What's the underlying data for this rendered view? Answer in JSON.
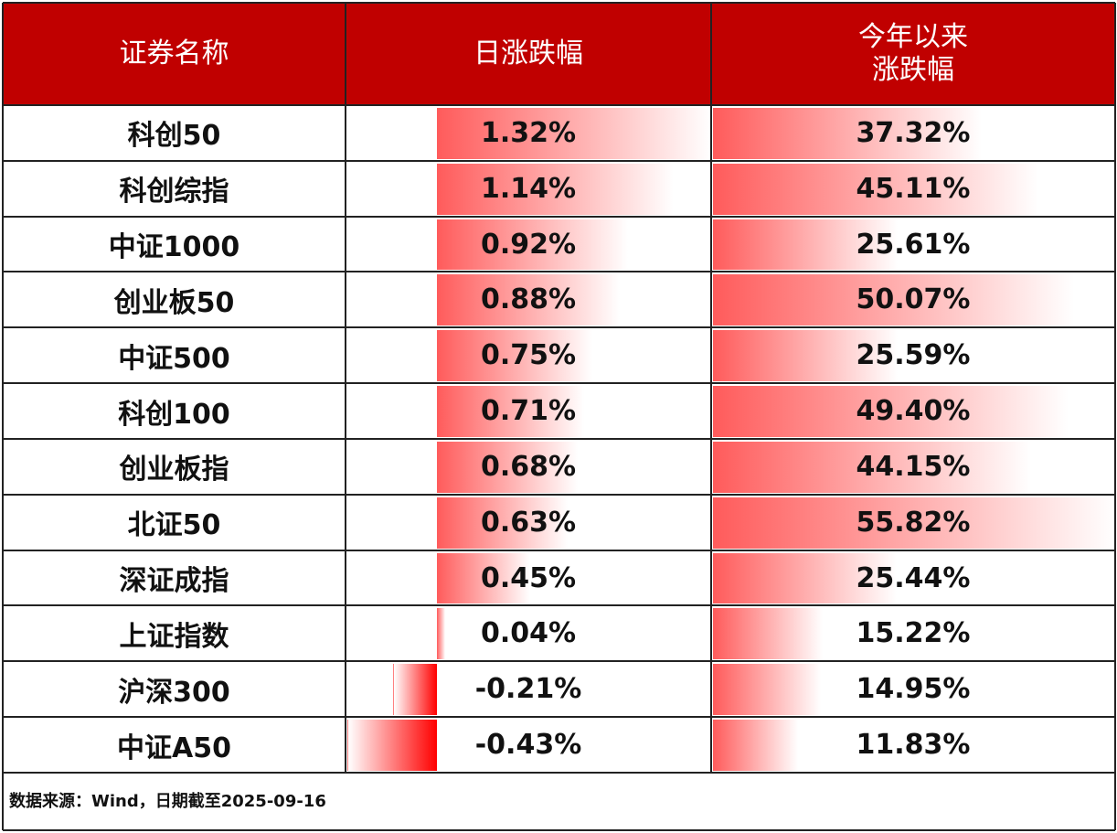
{
  "table": {
    "header": [
      "证券名称",
      "日涨跌幅",
      "今年以来\n涨跌幅"
    ],
    "rows": [
      [
        "科创50",
        {
          "value": 1.32,
          "label": "1.32%"
        },
        {
          "value": 37.32,
          "label": "37.32%"
        }
      ],
      [
        "科创综指",
        {
          "value": 1.14,
          "label": "1.14%"
        },
        {
          "value": 45.11,
          "label": "45.11%"
        }
      ],
      [
        "中证1000",
        {
          "value": 0.92,
          "label": "0.92%"
        },
        {
          "value": 25.61,
          "label": "25.61%"
        }
      ],
      [
        "创业板50",
        {
          "value": 0.88,
          "label": "0.88%"
        },
        {
          "value": 50.07,
          "label": "50.07%"
        }
      ],
      [
        "中证500",
        {
          "value": 0.75,
          "label": "0.75%"
        },
        {
          "value": 25.59,
          "label": "25.59%"
        }
      ],
      [
        "科创100",
        {
          "value": 0.71,
          "label": "0.71%"
        },
        {
          "value": 49.4,
          "label": "49.40%"
        }
      ],
      [
        "创业板指",
        {
          "value": 0.68,
          "label": "0.68%"
        },
        {
          "value": 44.15,
          "label": "44.15%"
        }
      ],
      [
        "北证50",
        {
          "value": 0.63,
          "label": "0.63%"
        },
        {
          "value": 55.82,
          "label": "55.82%"
        }
      ],
      [
        "深证成指",
        {
          "value": 0.45,
          "label": "0.45%"
        },
        {
          "value": 25.44,
          "label": "25.44%"
        }
      ],
      [
        "上证指数",
        {
          "value": 0.04,
          "label": "0.04%"
        },
        {
          "value": 15.22,
          "label": "15.22%"
        }
      ],
      [
        "沪深300",
        {
          "value": -0.21,
          "label": "-0.21%"
        },
        {
          "value": 14.95,
          "label": "14.95%"
        }
      ],
      [
        "中证A50",
        {
          "value": -0.43,
          "label": "-0.43%"
        },
        {
          "value": 11.83,
          "label": "11.83%"
        }
      ]
    ]
  },
  "footnote": "数据来源：Wind，日期截至2025-09-16"
}
